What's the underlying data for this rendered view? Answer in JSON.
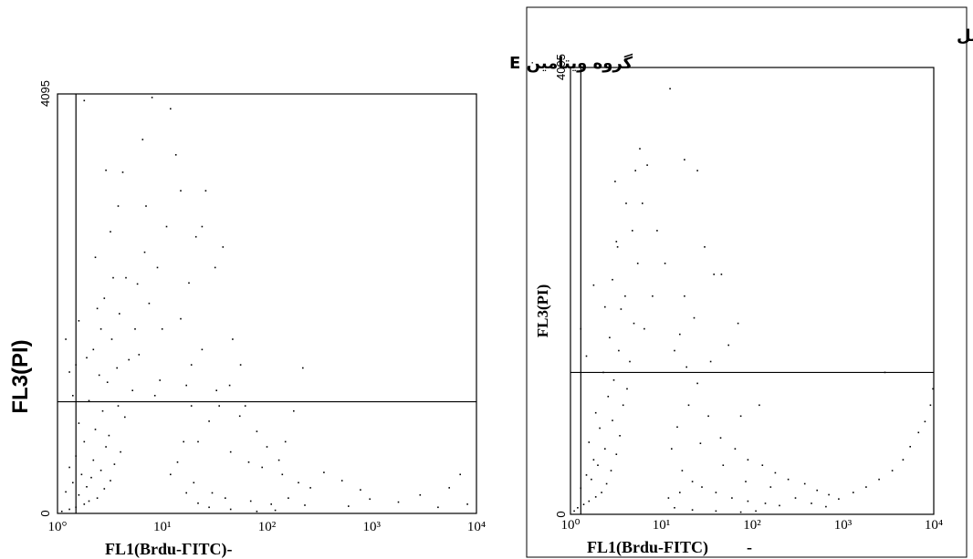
{
  "chart_data": [
    {
      "type": "scatter",
      "title": "گروه ویتامین E",
      "xlabel": "FL1(Brdu-ΓITC)-",
      "ylabel": "FL3(PI)",
      "x_scale": "log",
      "xlim": [
        1,
        10000
      ],
      "ylim": [
        0,
        4095
      ],
      "x_ticks": [
        "10°",
        "10¹",
        "10²",
        "10³",
        "10⁴"
      ],
      "y_ticks": [
        "0",
        "4095"
      ],
      "quadrant_x": 1.5,
      "quadrant_y": 1090,
      "grid": false,
      "point_color": "#000000",
      "points": [
        [
          1.1,
          20
        ],
        [
          1.3,
          40
        ],
        [
          1.5,
          60
        ],
        [
          1.8,
          90
        ],
        [
          2.0,
          120
        ],
        [
          2.4,
          150
        ],
        [
          1.6,
          180
        ],
        [
          1.2,
          210
        ],
        [
          2.8,
          240
        ],
        [
          1.9,
          260
        ],
        [
          1.4,
          300
        ],
        [
          3.2,
          320
        ],
        [
          2.1,
          350
        ],
        [
          1.7,
          380
        ],
        [
          2.6,
          420
        ],
        [
          1.3,
          450
        ],
        [
          3.5,
          480
        ],
        [
          2.2,
          520
        ],
        [
          1.5,
          560
        ],
        [
          4.0,
          600
        ],
        [
          2.9,
          650
        ],
        [
          1.8,
          700
        ],
        [
          3.1,
          760
        ],
        [
          2.3,
          820
        ],
        [
          1.6,
          880
        ],
        [
          4.4,
          940
        ],
        [
          2.7,
          1000
        ],
        [
          3.8,
          1050
        ],
        [
          2.0,
          1100
        ],
        [
          1.4,
          1150
        ],
        [
          5.2,
          1200
        ],
        [
          3.0,
          1280
        ],
        [
          2.5,
          1350
        ],
        [
          3.7,
          1420
        ],
        [
          4.8,
          1500
        ],
        [
          2.2,
          1600
        ],
        [
          3.3,
          1700
        ],
        [
          2.6,
          1800
        ],
        [
          3.9,
          1950
        ],
        [
          2.8,
          2100
        ],
        [
          3.4,
          2300
        ],
        [
          2.3,
          2500
        ],
        [
          3.2,
          2750
        ],
        [
          3.8,
          3000
        ],
        [
          2.9,
          3350
        ],
        [
          6.5,
          3650
        ],
        [
          1.8,
          4030
        ],
        [
          8.0,
          4060
        ],
        [
          9.5,
          1300
        ],
        [
          6.0,
          1550
        ],
        [
          5.5,
          1800
        ],
        [
          7.5,
          2050
        ],
        [
          4.5,
          2300
        ],
        [
          6.8,
          2550
        ],
        [
          1.3,
          1380
        ],
        [
          1.5,
          1450
        ],
        [
          1.9,
          1520
        ],
        [
          1.2,
          1700
        ],
        [
          1.6,
          1880
        ],
        [
          2.4,
          2000
        ],
        [
          13.5,
          3500
        ],
        [
          24,
          2800
        ],
        [
          38,
          2600
        ],
        [
          47,
          1700
        ],
        [
          56,
          1450
        ],
        [
          33,
          1200
        ],
        [
          28,
          900
        ],
        [
          22,
          700
        ],
        [
          45,
          600
        ],
        [
          67,
          500
        ],
        [
          90,
          450
        ],
        [
          140,
          380
        ],
        [
          200,
          300
        ],
        [
          260,
          250
        ],
        [
          20,
          300
        ],
        [
          30,
          200
        ],
        [
          40,
          150
        ],
        [
          70,
          120
        ],
        [
          110,
          90
        ],
        [
          15,
          1900
        ],
        [
          18,
          2250
        ],
        [
          21,
          2700
        ],
        [
          26,
          3150
        ],
        [
          32,
          2400
        ],
        [
          17,
          1250
        ],
        [
          19,
          1050
        ],
        [
          16,
          700
        ],
        [
          14,
          500
        ],
        [
          12,
          380
        ],
        [
          35,
          1050
        ],
        [
          55,
          950
        ],
        [
          80,
          800
        ],
        [
          100,
          650
        ],
        [
          130,
          520
        ],
        [
          350,
          400
        ],
        [
          520,
          320
        ],
        [
          780,
          230
        ],
        [
          960,
          140
        ],
        [
          5500,
          250
        ],
        [
          7000,
          380
        ],
        [
          8200,
          90
        ],
        [
          2900,
          180
        ],
        [
          1800,
          110
        ],
        [
          4300,
          60
        ],
        [
          600,
          70
        ],
        [
          220,
          1420
        ],
        [
          180,
          1000
        ],
        [
          12,
          3950
        ],
        [
          15,
          3150
        ],
        [
          11,
          2800
        ],
        [
          9,
          2400
        ],
        [
          7,
          3000
        ],
        [
          4.2,
          3330
        ],
        [
          5.8,
          2240
        ],
        [
          8.5,
          1150
        ],
        [
          10,
          1800
        ],
        [
          19,
          1450
        ],
        [
          24,
          1600
        ],
        [
          44,
          1250
        ],
        [
          62,
          1050
        ],
        [
          150,
          700
        ],
        [
          17,
          200
        ],
        [
          22,
          100
        ],
        [
          28,
          60
        ],
        [
          45,
          40
        ],
        [
          80,
          20
        ],
        [
          120,
          30
        ],
        [
          230,
          80
        ],
        [
          160,
          150
        ]
      ]
    },
    {
      "type": "scatter",
      "title": "گروه عسل",
      "xlabel": "FL1(Brdu-FITC)",
      "xlabel_suffix": "-",
      "ylabel": "FL3(PI)",
      "x_scale": "log",
      "xlim": [
        1,
        10000
      ],
      "ylim": [
        0,
        4095
      ],
      "x_ticks": [
        "10⁰",
        "10¹",
        "10²",
        "10³",
        "10⁴"
      ],
      "y_ticks": [
        "0",
        "4095"
      ],
      "quadrant_x": 1.3,
      "quadrant_y": 1300,
      "grid": false,
      "point_color": "#000000",
      "points": [
        [
          1.1,
          30
        ],
        [
          1.2,
          60
        ],
        [
          1.4,
          90
        ],
        [
          1.6,
          120
        ],
        [
          1.9,
          160
        ],
        [
          2.2,
          200
        ],
        [
          1.3,
          240
        ],
        [
          2.5,
          280
        ],
        [
          1.7,
          320
        ],
        [
          1.5,
          360
        ],
        [
          2.8,
          400
        ],
        [
          2.0,
          450
        ],
        [
          1.8,
          500
        ],
        [
          3.2,
          550
        ],
        [
          2.4,
          600
        ],
        [
          1.6,
          660
        ],
        [
          3.5,
          720
        ],
        [
          2.1,
          790
        ],
        [
          2.9,
          860
        ],
        [
          1.9,
          930
        ],
        [
          3.8,
          1000
        ],
        [
          2.6,
          1080
        ],
        [
          4.2,
          1150
        ],
        [
          3.0,
          1230
        ],
        [
          2.3,
          1300
        ],
        [
          4.5,
          1400
        ],
        [
          3.4,
          1500
        ],
        [
          2.7,
          1620
        ],
        [
          5.0,
          1750
        ],
        [
          3.6,
          1880
        ],
        [
          4.0,
          2000
        ],
        [
          2.9,
          2150
        ],
        [
          5.5,
          2300
        ],
        [
          3.3,
          2450
        ],
        [
          4.8,
          2600
        ],
        [
          6.2,
          2850
        ],
        [
          3.1,
          3050
        ],
        [
          7.0,
          3200
        ],
        [
          5.8,
          3350
        ],
        [
          12.5,
          3900
        ],
        [
          18,
          3250
        ],
        [
          25,
          3150
        ],
        [
          30,
          2450
        ],
        [
          38,
          2200
        ],
        [
          46,
          2200
        ],
        [
          70,
          1750
        ],
        [
          55,
          1550
        ],
        [
          35,
          1400
        ],
        [
          25,
          1200
        ],
        [
          20,
          1000
        ],
        [
          15,
          800
        ],
        [
          13,
          600
        ],
        [
          17,
          400
        ],
        [
          22,
          300
        ],
        [
          28,
          250
        ],
        [
          40,
          200
        ],
        [
          60,
          150
        ],
        [
          90,
          120
        ],
        [
          140,
          100
        ],
        [
          200,
          80
        ],
        [
          45,
          700
        ],
        [
          65,
          600
        ],
        [
          90,
          500
        ],
        [
          130,
          450
        ],
        [
          180,
          380
        ],
        [
          250,
          320
        ],
        [
          380,
          280
        ],
        [
          520,
          220
        ],
        [
          700,
          180
        ],
        [
          900,
          140
        ],
        [
          1300,
          200
        ],
        [
          1800,
          250
        ],
        [
          2500,
          320
        ],
        [
          3500,
          400
        ],
        [
          4600,
          500
        ],
        [
          5500,
          620
        ],
        [
          6800,
          750
        ],
        [
          8000,
          850
        ],
        [
          9200,
          1000
        ],
        [
          9800,
          1150
        ],
        [
          2900,
          1300
        ],
        [
          18,
          2000
        ],
        [
          23,
          1800
        ],
        [
          16,
          1650
        ],
        [
          14,
          1500
        ],
        [
          19,
          1350
        ],
        [
          11,
          2300
        ],
        [
          9,
          2600
        ],
        [
          8,
          2000
        ],
        [
          6.5,
          1700
        ],
        [
          5.2,
          3150
        ],
        [
          4.1,
          2850
        ],
        [
          3.2,
          2500
        ],
        [
          2.4,
          1900
        ],
        [
          1.5,
          1450
        ],
        [
          1.3,
          1700
        ],
        [
          1.8,
          2100
        ],
        [
          120,
          1000
        ],
        [
          75,
          900
        ],
        [
          33,
          900
        ],
        [
          27,
          650
        ],
        [
          48,
          450
        ],
        [
          85,
          300
        ],
        [
          160,
          250
        ],
        [
          300,
          150
        ],
        [
          450,
          100
        ],
        [
          650,
          70
        ],
        [
          110,
          30
        ],
        [
          75,
          20
        ],
        [
          40,
          30
        ],
        [
          22,
          40
        ],
        [
          14,
          60
        ],
        [
          12,
          150
        ],
        [
          16,
          200
        ]
      ]
    }
  ]
}
